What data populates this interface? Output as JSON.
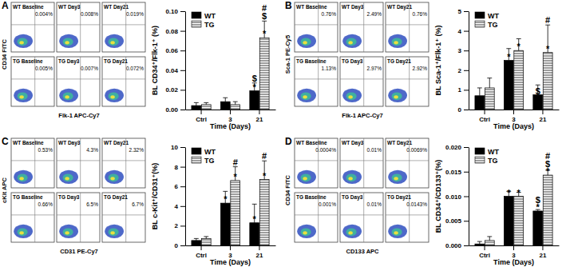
{
  "chart_data": [
    {
      "type": "bar",
      "title": "A",
      "x_label": "Time (Days)",
      "y_label": "BL CD34⁺/Flk-1⁺ (%)",
      "categories": [
        "Ctrl",
        "3",
        "21"
      ],
      "series": [
        {
          "name": "WT",
          "color": "#000000",
          "values": [
            0.004,
            0.008,
            0.019
          ],
          "errors": [
            0.003,
            0.004,
            0.008
          ],
          "annotations": [
            [],
            [],
            [
              "*",
              "$"
            ]
          ]
        },
        {
          "name": "TG",
          "color": "#9e9e9e",
          "values": [
            0.005,
            0.005,
            0.073
          ],
          "errors": [
            0.002,
            0.003,
            0.017
          ],
          "annotations": [
            [],
            [],
            [
              "*",
              "$",
              "#"
            ]
          ]
        }
      ],
      "ylim": [
        0,
        0.1
      ],
      "yticks": [
        {
          "value": 0,
          "label": "0.00"
        },
        0.02,
        0.04,
        0.06,
        0.08,
        {
          "value": 0.1,
          "label": "0.10"
        }
      ],
      "legend": "top-left"
    },
    {
      "type": "bar",
      "title": "B",
      "x_label": "Time (Days)",
      "y_label": "BL Sca-1⁺/Flk-1⁺ (%)",
      "categories": [
        "Ctrl",
        "3",
        "21"
      ],
      "series": [
        {
          "name": "WT",
          "color": "#000000",
          "values": [
            0.7,
            2.5,
            0.75
          ],
          "errors": [
            0.4,
            0.6,
            0.5
          ],
          "annotations": [
            [],
            [
              "*"
            ],
            [
              "$"
            ]
          ]
        },
        {
          "name": "TG",
          "color": "#9e9e9e",
          "values": [
            1.1,
            3.0,
            2.9
          ],
          "errors": [
            0.5,
            0.6,
            1.4
          ],
          "annotations": [
            [],
            [
              "*"
            ],
            [
              "*",
              "#"
            ]
          ]
        }
      ],
      "ylim": [
        0,
        5
      ],
      "yticks": [
        0,
        1,
        2,
        3,
        4,
        5
      ],
      "legend": "top-left"
    },
    {
      "type": "bar",
      "title": "C",
      "x_label": "Time (Days)",
      "y_label": "BL c-Kit⁺/CD31⁺(%)",
      "categories": [
        "Ctrl",
        "3",
        "21"
      ],
      "series": [
        {
          "name": "WT",
          "color": "#000000",
          "values": [
            0.5,
            4.3,
            2.3
          ],
          "errors": [
            0.2,
            1.2,
            1.9
          ],
          "annotations": [
            [],
            [
              "*"
            ],
            [
              "*"
            ]
          ]
        },
        {
          "name": "TG",
          "color": "#9e9e9e",
          "values": [
            0.7,
            6.6,
            6.7
          ],
          "errors": [
            0.2,
            1.4,
            1.9
          ],
          "annotations": [
            [],
            [
              "*",
              "#"
            ],
            [
              "*",
              "#"
            ]
          ]
        }
      ],
      "ylim": [
        0,
        10
      ],
      "yticks": [
        0,
        2,
        4,
        6,
        8,
        10
      ],
      "legend": "top-left"
    },
    {
      "type": "bar",
      "title": "D",
      "x_label": "Time (Days)",
      "y_label": "BL CD34⁺/CD133⁺(%)",
      "categories": [
        "Ctrl",
        "3",
        "21"
      ],
      "series": [
        {
          "name": "WT",
          "color": "#000000",
          "values": [
            0.0003,
            0.01,
            0.007
          ],
          "errors": [
            0.0005,
            0.001,
            0.0003
          ],
          "annotations": [
            [],
            [
              "*"
            ],
            [
              "*",
              "$"
            ]
          ]
        },
        {
          "name": "TG",
          "color": "#9e9e9e",
          "values": [
            0.001,
            0.01,
            0.0143
          ],
          "errors": [
            0.0008,
            0.0008,
            0.001
          ],
          "annotations": [
            [],
            [
              "*"
            ],
            [
              "*",
              "$",
              "#"
            ]
          ]
        }
      ],
      "ylim": [
        0,
        0.02
      ],
      "yticks": [
        {
          "value": 0,
          "label": "0.000"
        },
        0.005,
        {
          "value": 0.01,
          "label": "0.010"
        },
        0.015,
        {
          "value": 0.02,
          "label": "0.020"
        }
      ],
      "legend": "top-left"
    }
  ],
  "flow_cytometry": [
    {
      "x_label": "Flk-1 APC-Cy7",
      "y_label": "CD34 FITC",
      "names": [
        "WT Baseline",
        "WT Day3",
        "WT Day21",
        "TG Baseline",
        "TG Day3",
        "TG Day21"
      ],
      "values": [
        0.004,
        0.008,
        0.019,
        0.005,
        0.007,
        0.072
      ],
      "value_labels": [
        "0.004%",
        "0.008%",
        "0.019%",
        "0.005%",
        "0.007%",
        "0.072%"
      ]
    },
    {
      "x_label": "Flk-1 APC-Cy7",
      "y_label": "Sca-1 PE-Cy5",
      "names": [
        "WT Baseline",
        "WT Day3",
        "WT Day21",
        "TG Baseline",
        "TG Day3",
        "TG Day21"
      ],
      "values": [
        0.76,
        2.49,
        0.76,
        1.13,
        2.97,
        2.92
      ],
      "value_labels": [
        "0.76%",
        "2.49%",
        "0.76%",
        "1.13%",
        "2.97%",
        "2.92%"
      ]
    },
    {
      "x_label": "CD31 PE-Cy7",
      "y_label": "cKit APC",
      "names": [
        "WT Baseline",
        "WT Day3",
        "WT Day21",
        "TG Baseline",
        "TG Day3",
        "TG Day21"
      ],
      "values": [
        0.53,
        4.3,
        2.32,
        0.66,
        6.5,
        6.7
      ],
      "value_labels": [
        "0.53%",
        "4.3%",
        "2.32%",
        "0.66%",
        "6.5%",
        "6.7%"
      ]
    },
    {
      "x_label": "CD133 APC",
      "y_label": "CD34 FITC",
      "names": [
        "WT Baseline",
        "WT Day3",
        "WT Day21",
        "TG Baseline",
        "TG Day3",
        "TG Day21"
      ],
      "values": [
        0.0004,
        0.01,
        0.0069,
        0.001,
        0.01,
        0.0143
      ],
      "value_labels": [
        "0.0004%",
        "0.01%",
        "0.0069%",
        "0.001%",
        "0.01%",
        "0.0143%"
      ]
    }
  ]
}
